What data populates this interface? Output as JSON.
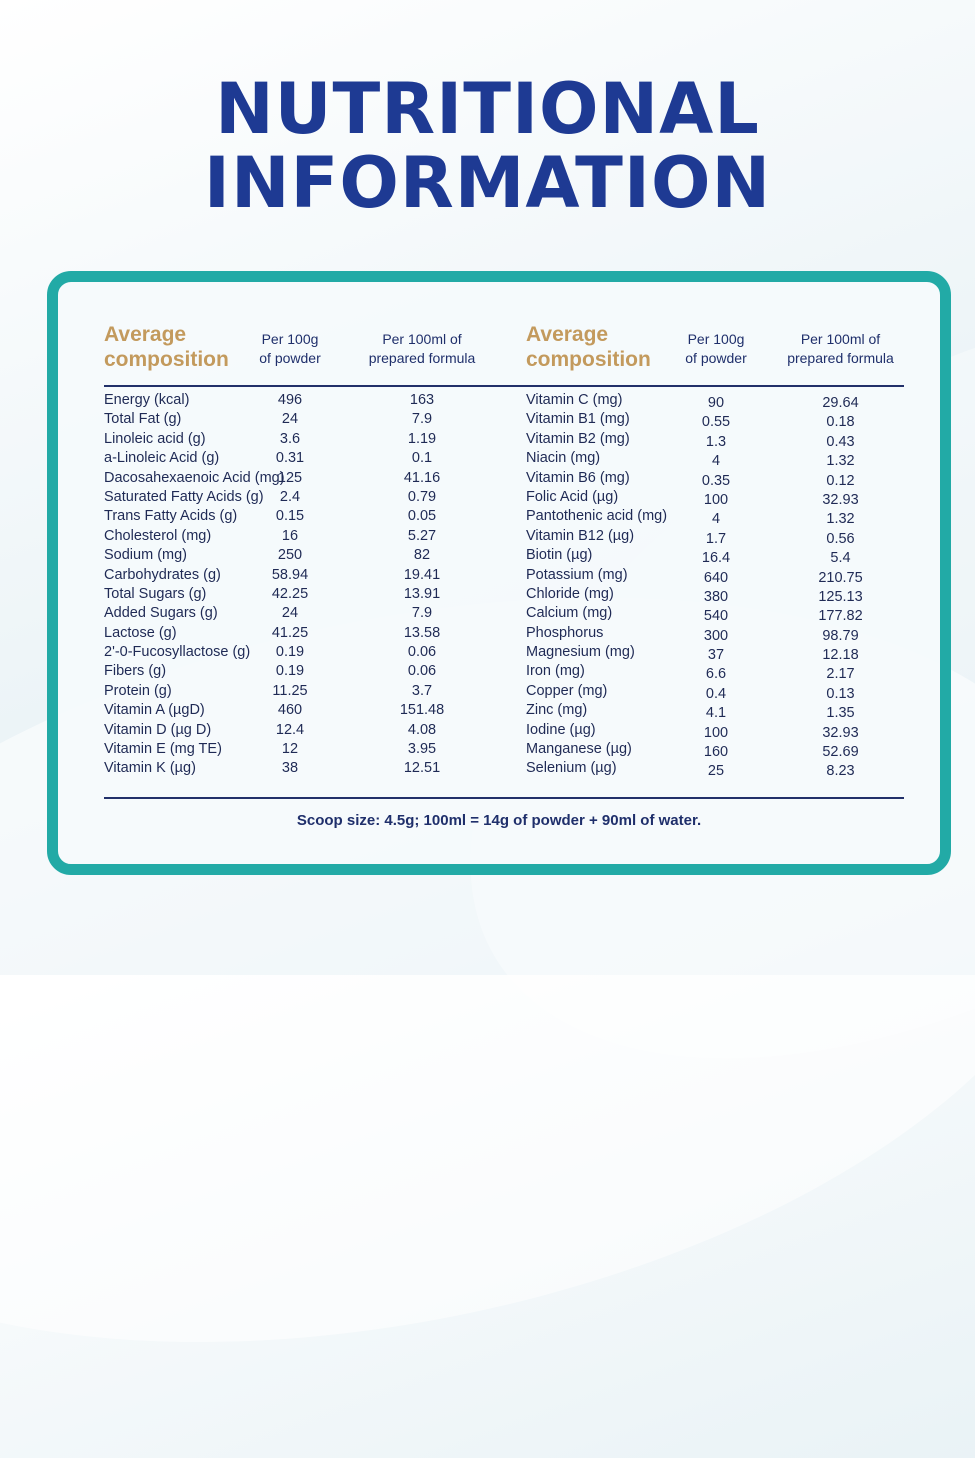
{
  "title": {
    "line1": "NUTRITIONAL",
    "line2": "INFORMATION"
  },
  "table": {
    "headers": {
      "left": {
        "composition_line1": "Average",
        "composition_line2": "composition",
        "col1_line1": "Per 100g",
        "col1_line2": "of powder",
        "col2_line1": "Per 100ml of",
        "col2_line2": "prepared formula"
      },
      "right": {
        "composition_line1": "Average",
        "composition_line2": "composition",
        "col1_line1": "Per 100g",
        "col1_line2": "of powder",
        "col2_line1": "Per 100ml of",
        "col2_line2": "prepared formula"
      }
    },
    "left_rows": [
      [
        "Energy (kcal)",
        "496",
        "163"
      ],
      [
        "Total Fat (g)",
        "24",
        "7.9"
      ],
      [
        "Linoleic acid (g)",
        "3.6",
        "1.19"
      ],
      [
        "a-Linoleic Acid (g)",
        "0.31",
        "0.1"
      ],
      [
        "Dacosahexaenoic Acid (mg)",
        "125",
        "41.16"
      ],
      [
        "Saturated Fatty Acids (g)",
        "2.4",
        "0.79"
      ],
      [
        "Trans Fatty Acids (g)",
        "0.15",
        "0.05"
      ],
      [
        "Cholesterol (mg)",
        "16",
        "5.27"
      ],
      [
        "Sodium (mg)",
        "250",
        "82"
      ],
      [
        "Carbohydrates (g)",
        "58.94",
        "19.41"
      ],
      [
        "Total Sugars (g)",
        "42.25",
        "13.91"
      ],
      [
        "Added Sugars (g)",
        "24",
        "7.9"
      ],
      [
        "Lactose (g)",
        "41.25",
        "13.58"
      ],
      [
        "2'-0-Fucosyllactose (g)",
        "0.19",
        "0.06"
      ],
      [
        "Fibers (g)",
        "0.19",
        "0.06"
      ],
      [
        "Protein (g)",
        "11.25",
        "3.7"
      ],
      [
        "Vitamin A (µgD)",
        "460",
        "151.48"
      ],
      [
        "Vitamin D (µg D)",
        "12.4",
        "4.08"
      ],
      [
        "Vitamin E (mg TE)",
        "12",
        "3.95"
      ],
      [
        "Vitamin K (µg)",
        "38",
        "12.51"
      ]
    ],
    "right_rows": [
      [
        "Vitamin C (mg)",
        "90",
        "29.64"
      ],
      [
        "Vitamin B1 (mg)",
        "0.55",
        "0.18"
      ],
      [
        "Vitamin B2 (mg)",
        "1.3",
        "0.43"
      ],
      [
        "Niacin (mg)",
        "4",
        "1.32"
      ],
      [
        "Vitamin B6 (mg)",
        "0.35",
        "0.12"
      ],
      [
        "Folic Acid (µg)",
        "100",
        "32.93"
      ],
      [
        "Pantothenic acid (mg)",
        "4",
        "1.32"
      ],
      [
        "Vitamin B12 (µg)",
        "1.7",
        "0.56"
      ],
      [
        "Biotin (µg)",
        "16.4",
        "5.4"
      ],
      [
        "Potassium (mg)",
        "640",
        "210.75"
      ],
      [
        "Chloride (mg)",
        "380",
        "125.13"
      ],
      [
        "Calcium (mg)",
        "540",
        "177.82"
      ],
      [
        "Phosphorus",
        "300",
        "98.79"
      ],
      [
        "Magnesium (mg)",
        "37",
        "12.18"
      ],
      [
        "Iron (mg)",
        "6.6",
        "2.17"
      ],
      [
        "Copper (mg)",
        "0.4",
        "0.13"
      ],
      [
        "Zinc (mg)",
        "4.1",
        "1.35"
      ],
      [
        "Iodine (µg)",
        "100",
        "32.93"
      ],
      [
        "Manganese (µg)",
        "160",
        "52.69"
      ],
      [
        "Selenium (µg)",
        "25",
        "8.23"
      ]
    ],
    "footnote": "Scoop size: 4.5g; 100ml = 14g of powder + 90ml of water."
  },
  "colors": {
    "title": "#1e3a93",
    "border": "#22aaa6",
    "heading": "#c39a5d",
    "text": "#1f2a55"
  }
}
